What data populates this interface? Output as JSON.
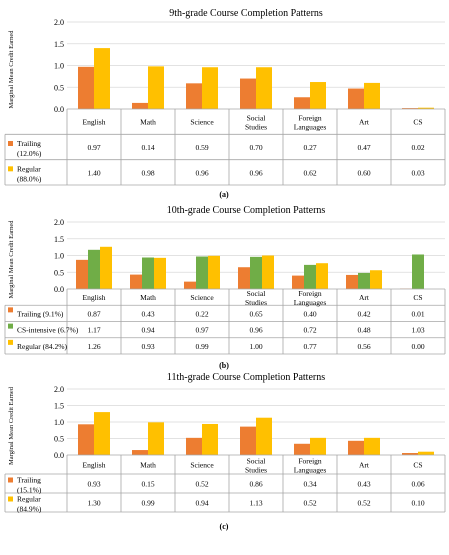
{
  "colors": {
    "trailing": "#ED7D31",
    "regular": "#FFC000",
    "cs_intensive": "#70AD47",
    "grid": "#D9D9D9",
    "line": "#A6A6A6"
  },
  "chart_data": [
    {
      "type": "bar",
      "title": "9th-grade Course Completion Patterns",
      "ylabel": "Marginal Mean Credit Earned",
      "xlabel": "",
      "ylim": [
        0,
        2.0
      ],
      "yticks": [
        "0.0",
        "0.5",
        "1.0",
        "1.5",
        "2.0"
      ],
      "categories": [
        "English",
        "Math",
        "Science",
        "Social Studies",
        "Foreign Languages",
        "Art",
        "CS"
      ],
      "series": [
        {
          "key": "trailing",
          "name": "Trailing (12.0%)",
          "values": [
            0.97,
            0.14,
            0.59,
            0.7,
            0.27,
            0.47,
            0.02
          ],
          "labels": [
            "0.97",
            "0.14",
            "0.59",
            "0.70",
            "0.27",
            "0.47",
            "0.02"
          ]
        },
        {
          "key": "regular",
          "name": "Regular (88.0%)",
          "values": [
            1.4,
            0.98,
            0.96,
            0.96,
            0.62,
            0.6,
            0.03
          ],
          "labels": [
            "1.40",
            "0.98",
            "0.96",
            "0.96",
            "0.62",
            "0.60",
            "0.03"
          ]
        }
      ],
      "panel_label": "(a)",
      "grid": true,
      "legend": "table-below"
    },
    {
      "type": "bar",
      "title": "10th-grade Course Completion Patterns",
      "ylabel": "Marginal Mean Credit Earned",
      "xlabel": "",
      "ylim": [
        0,
        2.0
      ],
      "yticks": [
        "0.0",
        "0.5",
        "1.0",
        "1.5",
        "2.0"
      ],
      "categories": [
        "English",
        "Math",
        "Science",
        "Social Studies",
        "Foreign Languages",
        "Art",
        "CS"
      ],
      "series": [
        {
          "key": "trailing",
          "name": "Trailing (9.1%)",
          "values": [
            0.87,
            0.43,
            0.22,
            0.65,
            0.4,
            0.42,
            0.01
          ],
          "labels": [
            "0.87",
            "0.43",
            "0.22",
            "0.65",
            "0.40",
            "0.42",
            "0.01"
          ]
        },
        {
          "key": "cs_intensive",
          "name": "CS-intensive (6.7%)",
          "values": [
            1.17,
            0.94,
            0.97,
            0.96,
            0.72,
            0.48,
            1.03
          ],
          "labels": [
            "1.17",
            "0.94",
            "0.97",
            "0.96",
            "0.72",
            "0.48",
            "1.03"
          ]
        },
        {
          "key": "regular",
          "name": "Regular (84.2%)",
          "values": [
            1.26,
            0.93,
            0.99,
            1.0,
            0.77,
            0.56,
            0.0
          ],
          "labels": [
            "1.26",
            "0.93",
            "0.99",
            "1.00",
            "0.77",
            "0.56",
            "0.00"
          ]
        }
      ],
      "panel_label": "(b)",
      "grid": true,
      "legend": "table-below"
    },
    {
      "type": "bar",
      "title": "11th-grade Course Completion Patterns",
      "ylabel": "Marginal Mean Credit Earned",
      "xlabel": "",
      "ylim": [
        0,
        2.0
      ],
      "yticks": [
        "0.0",
        "0.5",
        "1.0",
        "1.5",
        "2.0"
      ],
      "categories": [
        "English",
        "Math",
        "Science",
        "Social Studies",
        "Foreign Languages",
        "Art",
        "CS"
      ],
      "series": [
        {
          "key": "trailing",
          "name": "Trailing (15.1%)",
          "values": [
            0.93,
            0.15,
            0.52,
            0.86,
            0.34,
            0.43,
            0.06
          ],
          "labels": [
            "0.93",
            "0.15",
            "0.52",
            "0.86",
            "0.34",
            "0.43",
            "0.06"
          ]
        },
        {
          "key": "regular",
          "name": "Regular (84.9%)",
          "values": [
            1.3,
            0.99,
            0.94,
            1.13,
            0.52,
            0.52,
            0.1
          ],
          "labels": [
            "1.30",
            "0.99",
            "0.94",
            "1.13",
            "0.52",
            "0.52",
            "0.10"
          ]
        }
      ],
      "panel_label": "(c)",
      "grid": true,
      "legend": "table-below"
    }
  ]
}
